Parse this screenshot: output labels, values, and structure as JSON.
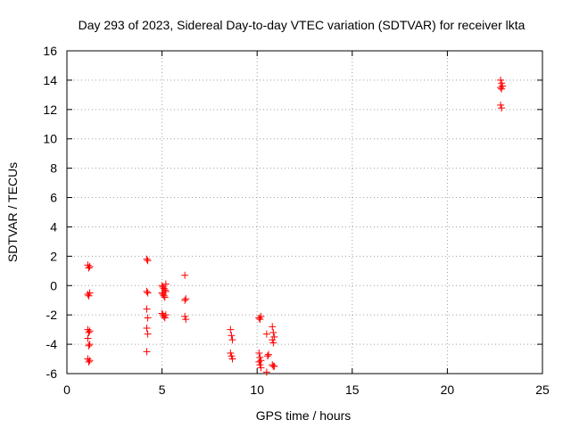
{
  "chart_data": {
    "type": "scatter",
    "title": "Day 293 of 2023, Sidereal Day-to-day VTEC variation (SDTVAR) for receiver lkta",
    "xlabel": "GPS time / hours",
    "ylabel": "SDTVAR / TECUs",
    "xlim": [
      0,
      25
    ],
    "ylim": [
      -6,
      16
    ],
    "xticks": [
      0,
      5,
      10,
      15,
      20,
      25
    ],
    "yticks": [
      -6,
      -4,
      -2,
      0,
      2,
      4,
      6,
      8,
      10,
      12,
      14,
      16
    ],
    "xtick_labels": [
      "0",
      "5",
      "10",
      "15",
      "20",
      "25"
    ],
    "ytick_labels": [
      "-6",
      "-4",
      "-2",
      "0",
      "2",
      "4",
      "6",
      "8",
      "10",
      "12",
      "14",
      "16"
    ],
    "grid": true,
    "legend": "none",
    "marker": "plus",
    "color": "#ff0000",
    "series": [
      {
        "name": "SDTVAR",
        "points": [
          [
            1.1,
            1.4
          ],
          [
            1.15,
            1.2
          ],
          [
            1.2,
            1.3
          ],
          [
            1.1,
            -0.6
          ],
          [
            1.15,
            -0.7
          ],
          [
            1.2,
            -0.5
          ],
          [
            1.1,
            -3.0
          ],
          [
            1.15,
            -3.2
          ],
          [
            1.2,
            -3.1
          ],
          [
            1.1,
            -3.6
          ],
          [
            1.15,
            -4.1
          ],
          [
            1.2,
            -4.0
          ],
          [
            1.1,
            -5.0
          ],
          [
            1.15,
            -5.2
          ],
          [
            1.2,
            -5.1
          ],
          [
            4.2,
            1.8
          ],
          [
            4.25,
            1.7
          ],
          [
            4.2,
            -0.4
          ],
          [
            4.25,
            -0.5
          ],
          [
            4.2,
            -1.6
          ],
          [
            4.25,
            -2.2
          ],
          [
            4.2,
            -2.9
          ],
          [
            4.25,
            -3.3
          ],
          [
            4.2,
            -4.5
          ],
          [
            5.0,
            0.0
          ],
          [
            5.05,
            -0.1
          ],
          [
            5.1,
            -0.2
          ],
          [
            5.15,
            -0.3
          ],
          [
            5.2,
            -0.4
          ],
          [
            5.0,
            -0.5
          ],
          [
            5.05,
            -0.6
          ],
          [
            5.1,
            -0.7
          ],
          [
            5.15,
            -0.8
          ],
          [
            5.2,
            0.1
          ],
          [
            5.0,
            -1.9
          ],
          [
            5.05,
            -2.0
          ],
          [
            5.1,
            -2.1
          ],
          [
            5.15,
            -2.2
          ],
          [
            5.2,
            -2.0
          ],
          [
            6.2,
            0.7
          ],
          [
            6.25,
            -0.9
          ],
          [
            6.2,
            -1.0
          ],
          [
            6.2,
            -2.1
          ],
          [
            6.25,
            -2.3
          ],
          [
            8.6,
            -3.0
          ],
          [
            8.65,
            -3.4
          ],
          [
            8.7,
            -3.7
          ],
          [
            8.6,
            -4.6
          ],
          [
            8.65,
            -4.8
          ],
          [
            8.7,
            -5.0
          ],
          [
            10.1,
            -2.2
          ],
          [
            10.15,
            -2.3
          ],
          [
            10.2,
            -2.1
          ],
          [
            10.1,
            -4.6
          ],
          [
            10.15,
            -4.9
          ],
          [
            10.2,
            -5.1
          ],
          [
            10.1,
            -5.2
          ],
          [
            10.15,
            -5.4
          ],
          [
            10.2,
            -5.6
          ],
          [
            10.5,
            -3.3
          ],
          [
            10.55,
            -4.8
          ],
          [
            10.6,
            -4.7
          ],
          [
            10.5,
            -5.9
          ],
          [
            10.8,
            -2.8
          ],
          [
            10.85,
            -3.2
          ],
          [
            10.9,
            -3.5
          ],
          [
            10.8,
            -3.7
          ],
          [
            10.85,
            -3.9
          ],
          [
            10.8,
            -5.4
          ],
          [
            10.85,
            -5.5
          ],
          [
            10.9,
            -5.5
          ],
          [
            22.8,
            14.0
          ],
          [
            22.85,
            13.8
          ],
          [
            22.9,
            13.6
          ],
          [
            22.8,
            13.5
          ],
          [
            22.85,
            13.4
          ],
          [
            22.8,
            12.3
          ],
          [
            22.85,
            12.1
          ]
        ]
      }
    ]
  }
}
